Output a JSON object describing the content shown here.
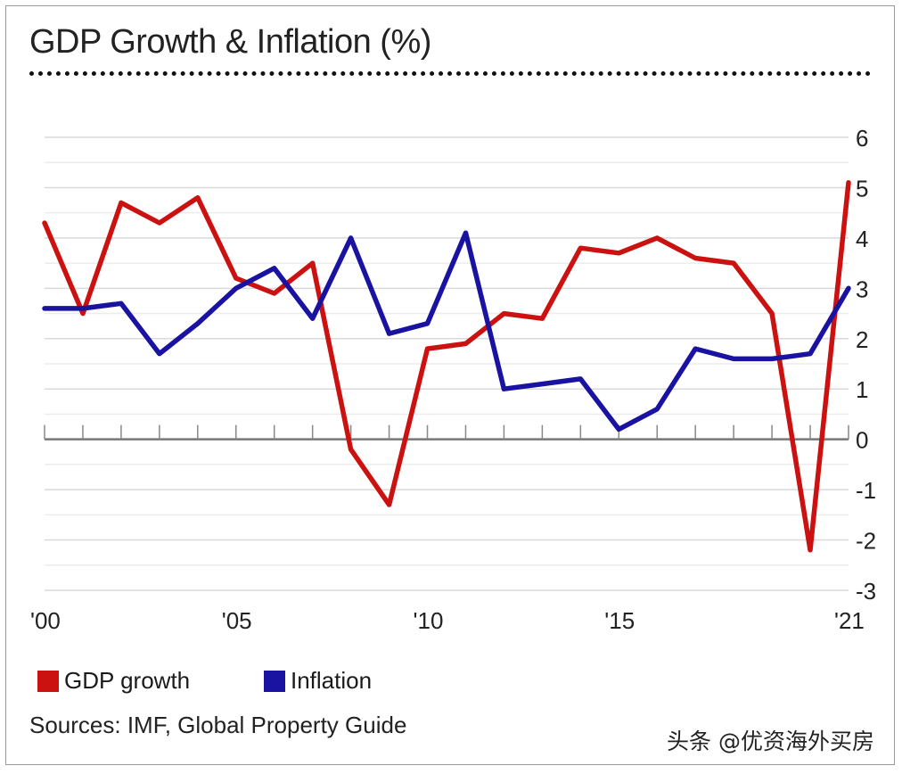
{
  "chart_data": {
    "type": "line",
    "title": "GDP Growth & Inflation (%)",
    "xlabel": "",
    "ylabel": "",
    "x": [
      2000,
      2001,
      2002,
      2003,
      2004,
      2005,
      2006,
      2007,
      2008,
      2009,
      2010,
      2011,
      2012,
      2013,
      2014,
      2015,
      2016,
      2017,
      2018,
      2019,
      2020,
      2021
    ],
    "x_tick_labels": [
      {
        "year": 2000,
        "label": "'00"
      },
      {
        "year": 2005,
        "label": "'05"
      },
      {
        "year": 2010,
        "label": "'10"
      },
      {
        "year": 2015,
        "label": "'15"
      },
      {
        "year": 2021,
        "label": "'21"
      }
    ],
    "y_tick_values": [
      6,
      5,
      4,
      3,
      2,
      1,
      0,
      -1,
      -2,
      -3
    ],
    "y_tick_labels": [
      "6",
      "5",
      "4",
      "3",
      "2",
      "1",
      "0",
      "-1",
      "-2",
      "-3"
    ],
    "ylim": [
      -3,
      6
    ],
    "grid": true,
    "series": [
      {
        "name": "GDP growth",
        "color": "#cc1111",
        "values": [
          4.3,
          2.5,
          4.7,
          4.3,
          4.8,
          3.2,
          2.9,
          3.5,
          -0.2,
          -1.3,
          1.8,
          1.9,
          2.5,
          2.4,
          3.8,
          3.7,
          4.0,
          3.6,
          3.5,
          2.5,
          -2.2,
          5.1
        ]
      },
      {
        "name": "Inflation",
        "color": "#1a12a0",
        "values": [
          2.6,
          2.6,
          2.7,
          1.7,
          2.3,
          3.0,
          3.4,
          2.4,
          4.0,
          2.1,
          2.3,
          4.1,
          1.0,
          1.1,
          1.2,
          0.2,
          0.6,
          1.8,
          1.6,
          1.6,
          1.7,
          3.0
        ]
      }
    ]
  },
  "legend": {
    "gdp_label": "GDP growth",
    "gdp_color": "#cc1111",
    "inflation_label": "Inflation",
    "inflation_color": "#1a12a0"
  },
  "sources": "Sources:  IMF, Global Property Guide",
  "watermark": "头条 @优资海外买房"
}
